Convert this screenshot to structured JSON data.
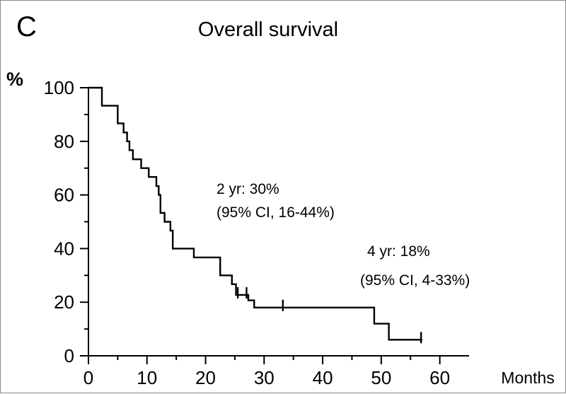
{
  "panel_label": "C",
  "chart_data": {
    "type": "line",
    "subtype": "kaplan-meier step curve",
    "title": "Overall survival",
    "ylabel": "%",
    "xlabel": "Months",
    "xlim": [
      0,
      65
    ],
    "ylim": [
      0,
      100
    ],
    "x_ticks": [
      0,
      10,
      20,
      30,
      40,
      50,
      60
    ],
    "x_ticks_minor": [
      5,
      15,
      25,
      35,
      45,
      55
    ],
    "y_ticks": [
      0,
      20,
      40,
      60,
      80,
      100
    ],
    "y_ticks_minor": [
      10,
      30,
      50,
      70,
      90
    ],
    "grid": false,
    "legend": "none",
    "series": [
      {
        "color": "#000000",
        "steps": [
          [
            0,
            100
          ],
          [
            2.3,
            93.3
          ],
          [
            5,
            86.7
          ],
          [
            6,
            83.3
          ],
          [
            6.6,
            80
          ],
          [
            7,
            76.7
          ],
          [
            7.6,
            73.3
          ],
          [
            9,
            70
          ],
          [
            10.3,
            66.7
          ],
          [
            11.6,
            63.3
          ],
          [
            12,
            60
          ],
          [
            12.3,
            53.3
          ],
          [
            13,
            50
          ],
          [
            14,
            46.7
          ],
          [
            14.4,
            40
          ],
          [
            18,
            36.7
          ],
          [
            22.5,
            30
          ],
          [
            24.5,
            26.7
          ],
          [
            25.2,
            22.7
          ],
          [
            27.3,
            20.7
          ],
          [
            28.3,
            18
          ],
          [
            48.8,
            12
          ],
          [
            51.3,
            6
          ],
          [
            57,
            6
          ]
        ],
        "censored": [
          [
            25.5,
            22.7
          ],
          [
            27,
            22.7
          ],
          [
            33.2,
            18
          ],
          [
            56.8,
            6
          ]
        ]
      }
    ],
    "annotations": [
      {
        "line1": "2 yr: 30%",
        "line2": "(95% CI, 16-44%)"
      },
      {
        "line1": "4 yr: 18%",
        "line2": "(95% CI, 4-33%)"
      }
    ]
  }
}
